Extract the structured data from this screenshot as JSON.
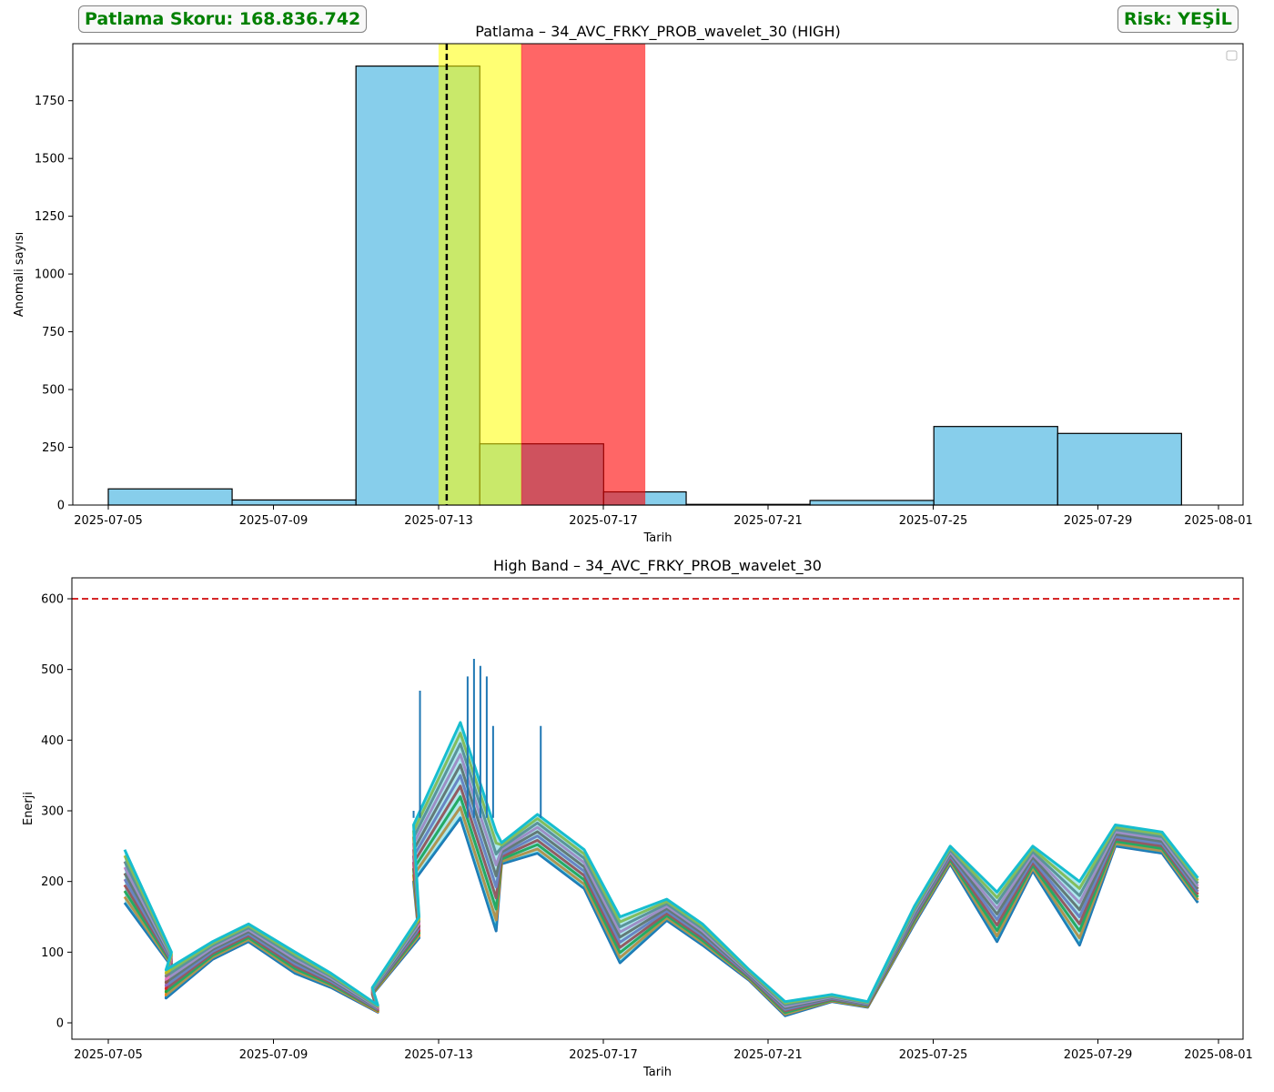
{
  "score_badge": {
    "text": "Patlama Skoru: 168.836.742",
    "color": "#008000"
  },
  "risk_badge": {
    "text": "Risk: YEŞİL",
    "color": "#008000"
  },
  "chart_data": [
    {
      "type": "bar",
      "title": "Patlama – 34_AVC_FRKY_PROB_wavelet_30 (HIGH)",
      "xlabel": "Tarih",
      "ylabel": "Anomali sayısı",
      "x_ticks": [
        "2025-07-05",
        "2025-07-09",
        "2025-07-13",
        "2025-07-17",
        "2025-07-21",
        "2025-07-25",
        "2025-07-29",
        "2025-08-01"
      ],
      "y_ticks": [
        "0",
        "250",
        "500",
        "750",
        "1000",
        "1250",
        "1500",
        "1750"
      ],
      "ylim": [
        0,
        2000
      ],
      "bar_color": "#87ceeb",
      "histogram_bins": [
        {
          "start": "2025-07-05",
          "end": "2025-07-08",
          "count": 70
        },
        {
          "start": "2025-07-08",
          "end": "2025-07-11",
          "count": 22
        },
        {
          "start": "2025-07-11",
          "end": "2025-07-14",
          "count": 1900
        },
        {
          "start": "2025-07-14",
          "end": "2025-07-17",
          "count": 265
        },
        {
          "start": "2025-07-17",
          "end": "2025-07-19",
          "count": 57
        },
        {
          "start": "2025-07-19",
          "end": "2025-07-22",
          "count": 3
        },
        {
          "start": "2025-07-22",
          "end": "2025-07-25",
          "count": 20
        },
        {
          "start": "2025-07-25",
          "end": "2025-07-28",
          "count": 340
        },
        {
          "start": "2025-07-28",
          "end": "2025-07-31",
          "count": 310
        }
      ],
      "vertical_line": {
        "x": "2025-07-13",
        "style": "dashed",
        "color": "#000000"
      },
      "shaded_regions": [
        {
          "start": "2025-07-13",
          "end": "2025-07-15",
          "color": "#ffff00",
          "alpha": 0.55
        },
        {
          "start": "2025-07-15",
          "end": "2025-07-18",
          "color": "#ff0000",
          "alpha": 0.6
        }
      ],
      "legend": "top-right"
    },
    {
      "type": "line",
      "title": "High Band – 34_AVC_FRKY_PROB_wavelet_30",
      "xlabel": "Tarih",
      "ylabel": "Enerji",
      "x_ticks": [
        "2025-07-05",
        "2025-07-09",
        "2025-07-13",
        "2025-07-17",
        "2025-07-21",
        "2025-07-25",
        "2025-07-29",
        "2025-08-01"
      ],
      "y_ticks": [
        "0",
        "100",
        "200",
        "300",
        "400",
        "500",
        "600"
      ],
      "ylim": [
        -23,
        630
      ],
      "threshold_line": {
        "y": 600,
        "style": "dashed",
        "color": "#d62728"
      },
      "envelope": {
        "x": [
          "2025-07-05",
          "2025-07-06",
          "2025-07-06",
          "2025-07-07",
          "2025-07-08",
          "2025-07-09",
          "2025-07-10",
          "2025-07-11",
          "2025-07-11",
          "2025-07-12",
          "2025-07-12",
          "2025-07-13",
          "2025-07-14",
          "2025-07-14",
          "2025-07-15",
          "2025-07-16",
          "2025-07-17",
          "2025-07-18",
          "2025-07-19",
          "2025-07-20",
          "2025-07-21",
          "2025-07-22",
          "2025-07-23",
          "2025-07-24",
          "2025-07-25",
          "2025-07-26",
          "2025-07-27",
          "2025-07-28",
          "2025-07-29",
          "2025-07-30",
          "2025-07-31"
        ],
        "low": [
          170,
          80,
          35,
          90,
          115,
          70,
          50,
          15,
          40,
          120,
          200,
          290,
          130,
          225,
          240,
          190,
          85,
          145,
          110,
          60,
          10,
          30,
          22,
          140,
          225,
          115,
          215,
          110,
          250,
          240,
          170
        ],
        "high": [
          245,
          100,
          75,
          115,
          140,
          100,
          70,
          25,
          50,
          150,
          280,
          425,
          270,
          255,
          295,
          245,
          150,
          175,
          140,
          75,
          30,
          40,
          30,
          165,
          250,
          185,
          250,
          200,
          280,
          270,
          205
        ],
        "spike_x": [
          "2025-07-12",
          "2025-07-12",
          "2025-07-13",
          "2025-07-13",
          "2025-07-13",
          "2025-07-13",
          "2025-07-13",
          "2025-07-14"
        ],
        "spike_y": [
          300,
          470,
          490,
          515,
          505,
          490,
          420,
          420
        ]
      },
      "series_colors": [
        "#1f77b4",
        "#ff7f0e",
        "#2ca02c",
        "#d62728",
        "#9467bd",
        "#8c564b",
        "#e377c2",
        "#7f7f7f",
        "#bcbd22",
        "#17becf"
      ]
    }
  ]
}
